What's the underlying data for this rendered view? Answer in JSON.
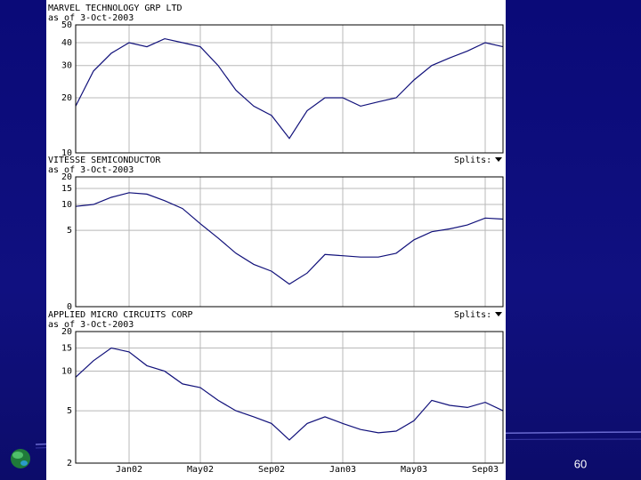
{
  "chart_data": [
    {
      "type": "line",
      "title": "MARVEL TECHNOLOGY GRP LTD",
      "subtitle": "as of 3-Oct-2003",
      "yscale": "log",
      "ylim": [
        10,
        50
      ],
      "yticks": [
        10,
        20,
        30,
        40,
        50
      ],
      "grid": true,
      "color": "#10107a",
      "values": [
        18,
        28,
        35,
        40,
        38,
        42,
        40,
        38,
        30,
        22,
        18,
        16,
        12,
        17,
        20,
        20,
        18,
        19,
        20,
        25,
        30,
        33,
        36,
        40,
        38
      ]
    },
    {
      "type": "line",
      "title": "VITESSE SEMICONDUCTOR",
      "subtitle": "as of 3-Oct-2003",
      "splits_label": "Splits:",
      "yscale": "log1p",
      "ylim": [
        0,
        20
      ],
      "yticks": [
        0,
        5,
        10,
        15,
        20
      ],
      "grid": true,
      "color": "#10107a",
      "values": [
        9.5,
        10,
        12,
        13.5,
        13,
        11,
        9,
        6,
        4,
        2.5,
        1.7,
        1.3,
        0.7,
        1.2,
        2.4,
        2.3,
        2.2,
        2.2,
        2.5,
        3.8,
        4.8,
        5.2,
        5.8,
        7,
        6.8
      ]
    },
    {
      "type": "line",
      "title": "APPLIED MICRO CIRCUITS CORP",
      "subtitle": "as of 3-Oct-2003",
      "splits_label": "Splits:",
      "yscale": "log",
      "ylim": [
        2,
        20
      ],
      "yticks": [
        2,
        5,
        10,
        15,
        20
      ],
      "grid": true,
      "color": "#10107a",
      "categories": [
        null,
        null,
        null,
        "Jan02",
        null,
        null,
        null,
        "May02",
        null,
        null,
        null,
        "Sep02",
        null,
        null,
        null,
        "Jan03",
        null,
        null,
        null,
        "May03",
        null,
        null,
        null,
        "Sep03",
        null
      ],
      "values": [
        9,
        12,
        15,
        14,
        11,
        10,
        8,
        7.5,
        6,
        5,
        4.5,
        4,
        3,
        4,
        4.5,
        4,
        3.6,
        3.4,
        3.5,
        4.2,
        6,
        5.5,
        5.3,
        5.8,
        5
      ]
    }
  ],
  "slide": {
    "page_number": "60"
  }
}
